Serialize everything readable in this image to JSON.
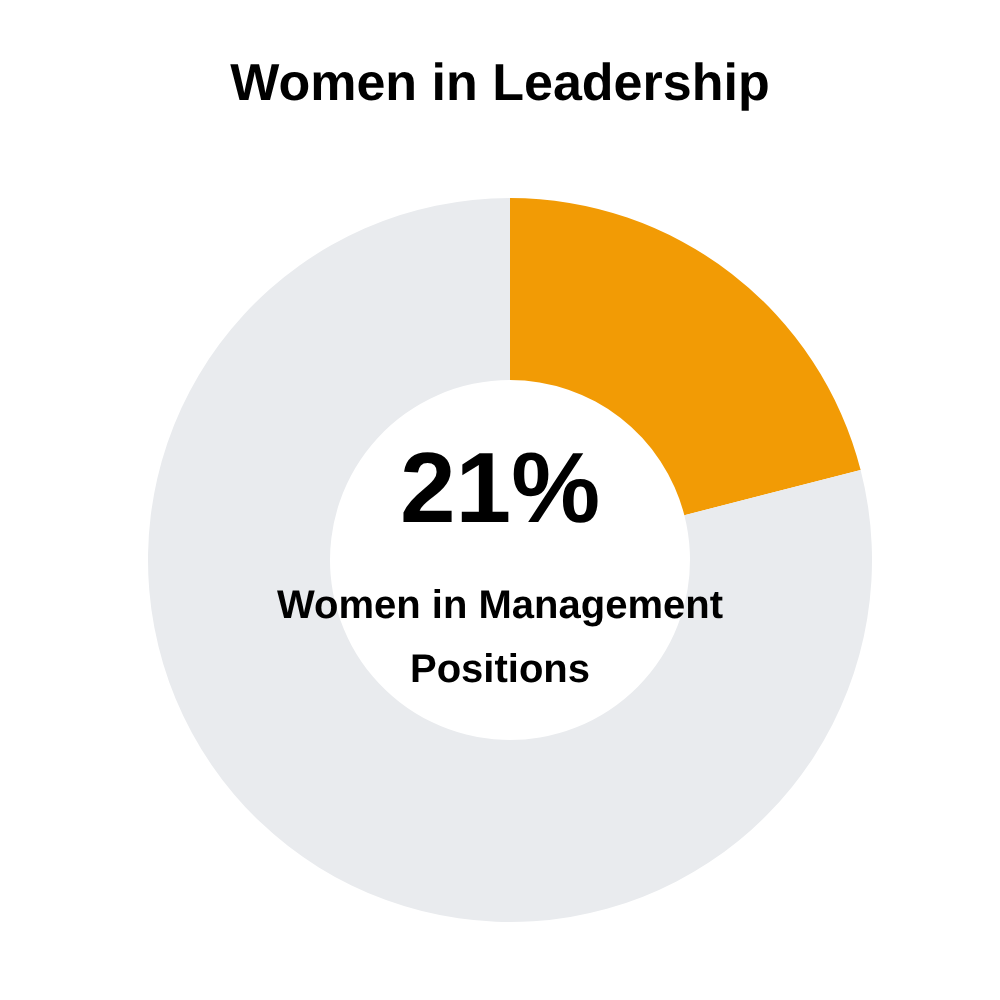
{
  "chart_data": {
    "type": "donut",
    "title": "Women in Leadership",
    "categories": [
      null,
      null
    ],
    "values": [
      21,
      79
    ],
    "colors": [
      "#f29b05",
      "#e9ebee"
    ],
    "value_labels": [
      "21%",
      null
    ],
    "annotations": [
      "Women in Management Positions"
    ],
    "legend": false
  }
}
